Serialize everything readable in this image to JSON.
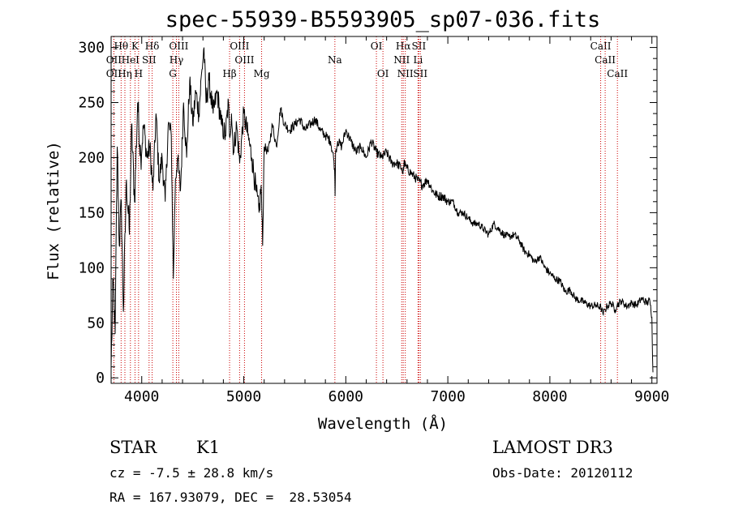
{
  "chart_data": {
    "type": "line",
    "title": "spec-55939-B5593905_sp07-036.fits",
    "xlabel": "Wavelength (Å)",
    "ylabel": "Flux (relative)",
    "xlim": [
      3700,
      9050
    ],
    "ylim": [
      -5,
      310
    ],
    "xticks": [
      4000,
      5000,
      6000,
      7000,
      8000,
      9000
    ],
    "yticks": [
      0,
      50,
      100,
      150,
      200,
      250,
      300
    ],
    "grid": false,
    "series": [
      {
        "name": "spectrum",
        "x": [
          3700,
          3720,
          3740,
          3760,
          3780,
          3800,
          3820,
          3850,
          3880,
          3900,
          3930,
          3960,
          3990,
          4020,
          4050,
          4080,
          4110,
          4140,
          4170,
          4200,
          4230,
          4260,
          4290,
          4310,
          4330,
          4350,
          4380,
          4410,
          4440,
          4470,
          4500,
          4530,
          4560,
          4590,
          4610,
          4630,
          4660,
          4700,
          4740,
          4780,
          4820,
          4850,
          4860,
          4880,
          4900,
          4930,
          4960,
          5000,
          5040,
          5080,
          5120,
          5150,
          5170,
          5185,
          5200,
          5240,
          5280,
          5320,
          5360,
          5400,
          5450,
          5500,
          5550,
          5600,
          5650,
          5700,
          5750,
          5800,
          5850,
          5880,
          5890,
          5895,
          5900,
          5920,
          5960,
          6000,
          6050,
          6100,
          6150,
          6200,
          6250,
          6300,
          6350,
          6400,
          6450,
          6500,
          6550,
          6560,
          6570,
          6600,
          6650,
          6700,
          6750,
          6800,
          6850,
          6900,
          6950,
          7000,
          7050,
          7100,
          7150,
          7200,
          7250,
          7300,
          7350,
          7400,
          7450,
          7500,
          7550,
          7600,
          7650,
          7700,
          7750,
          7800,
          7850,
          7900,
          7950,
          8000,
          8050,
          8100,
          8150,
          8200,
          8250,
          8300,
          8350,
          8400,
          8450,
          8500,
          8520,
          8540,
          8560,
          8600,
          8640,
          8660,
          8700,
          8750,
          8800,
          8850,
          8900,
          8950,
          8980,
          9000,
          9010
        ],
        "values": [
          10,
          90,
          40,
          210,
          120,
          160,
          60,
          180,
          130,
          230,
          160,
          250,
          200,
          230,
          200,
          210,
          170,
          240,
          180,
          200,
          160,
          230,
          220,
          90,
          180,
          200,
          170,
          250,
          200,
          270,
          230,
          260,
          240,
          280,
          300,
          250,
          270,
          240,
          260,
          230,
          220,
          250,
          220,
          240,
          205,
          230,
          195,
          240,
          220,
          200,
          170,
          150,
          175,
          120,
          210,
          205,
          230,
          210,
          245,
          230,
          225,
          230,
          235,
          225,
          230,
          235,
          225,
          220,
          215,
          200,
          190,
          165,
          205,
          215,
          210,
          225,
          215,
          205,
          210,
          200,
          215,
          205,
          200,
          205,
          195,
          195,
          190,
          185,
          195,
          190,
          185,
          180,
          175,
          180,
          170,
          165,
          165,
          160,
          160,
          150,
          150,
          145,
          140,
          140,
          135,
          130,
          140,
          135,
          130,
          128,
          130,
          125,
          115,
          112,
          105,
          110,
          100,
          95,
          90,
          88,
          78,
          80,
          72,
          70,
          68,
          65,
          66,
          64,
          58,
          62,
          65,
          68,
          62,
          66,
          70,
          65,
          68,
          66,
          72,
          68,
          70,
          55,
          5
        ]
      }
    ],
    "line_markers": [
      {
        "name": "Hθ",
        "wl": 3798,
        "row": 0
      },
      {
        "name": "K",
        "wl": 3934,
        "row": 0
      },
      {
        "name": "Hδ",
        "wl": 4102,
        "row": 0
      },
      {
        "name": "OIII",
        "wl": 4363,
        "row": 0
      },
      {
        "name": "OIII",
        "wl": 4959,
        "row": 0
      },
      {
        "name": "OI",
        "wl": 6300,
        "row": 0
      },
      {
        "name": "Hα",
        "wl": 6563,
        "row": 0
      },
      {
        "name": "SII",
        "wl": 6716,
        "row": 0
      },
      {
        "name": "CaII",
        "wl": 8498,
        "row": 0
      },
      {
        "name": "OII",
        "wl": 3727,
        "row": 1
      },
      {
        "name": "HeI",
        "wl": 3889,
        "row": 1
      },
      {
        "name": "SII",
        "wl": 4072,
        "row": 1
      },
      {
        "name": "Hγ",
        "wl": 4340,
        "row": 1
      },
      {
        "name": "OIII",
        "wl": 5007,
        "row": 1
      },
      {
        "name": "Na",
        "wl": 5893,
        "row": 1
      },
      {
        "name": "NII",
        "wl": 6548,
        "row": 1
      },
      {
        "name": "Li",
        "wl": 6708,
        "row": 1
      },
      {
        "name": "CaII",
        "wl": 8542,
        "row": 1
      },
      {
        "name": "OII",
        "wl": 3727,
        "row": 2
      },
      {
        "name": "Hη",
        "wl": 3835,
        "row": 2
      },
      {
        "name": "H",
        "wl": 3969,
        "row": 2
      },
      {
        "name": "G",
        "wl": 4305,
        "row": 2
      },
      {
        "name": "Hβ",
        "wl": 4861,
        "row": 2
      },
      {
        "name": "Mg",
        "wl": 5175,
        "row": 2
      },
      {
        "name": "OI",
        "wl": 6364,
        "row": 2
      },
      {
        "name": "NII",
        "wl": 6583,
        "row": 2
      },
      {
        "name": "SII",
        "wl": 6731,
        "row": 2
      },
      {
        "name": "CaII",
        "wl": 8662,
        "row": 2
      }
    ]
  },
  "info": {
    "object_class": "STAR",
    "subclass": "K1",
    "survey": "LAMOST DR3",
    "redshift": "cz = -7.5 ± 28.8 km/s",
    "obs_date": "Obs-Date: 20120112",
    "coords": "RA = 167.93079, DEC =  28.53054"
  },
  "colors": {
    "line_marker": "#cc0000",
    "axis": "#000000",
    "spectrum": "#000000"
  }
}
